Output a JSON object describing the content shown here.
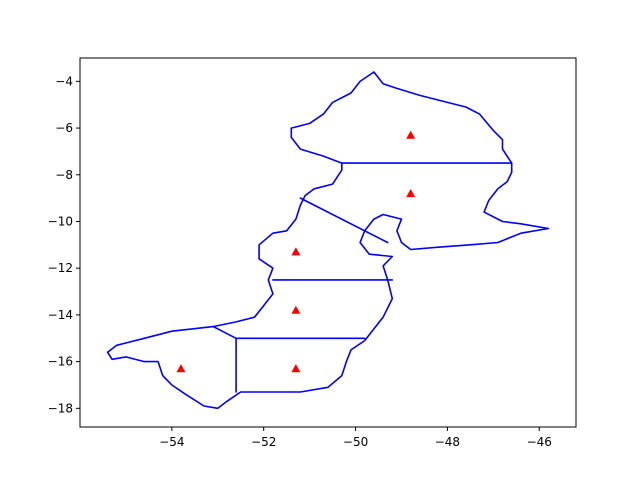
{
  "chart_data": {
    "type": "map",
    "title": "",
    "xlabel": "",
    "ylabel": "",
    "xlim": [
      -56.0,
      -45.2
    ],
    "ylim": [
      -18.8,
      -3.0
    ],
    "xticks": [
      -54,
      -52,
      -50,
      -48,
      -46
    ],
    "yticks": [
      -18,
      -16,
      -14,
      -12,
      -10,
      -8,
      -6,
      -4
    ],
    "grid": false,
    "colors": {
      "boundary": "#0000ff",
      "marker": "#ff0000"
    },
    "outline": [
      [
        -49.6,
        -3.6
      ],
      [
        -49.4,
        -4.1
      ],
      [
        -49.1,
        -4.3
      ],
      [
        -48.6,
        -4.6
      ],
      [
        -48.0,
        -4.9
      ],
      [
        -47.6,
        -5.1
      ],
      [
        -47.3,
        -5.4
      ],
      [
        -47.0,
        -6.1
      ],
      [
        -46.8,
        -6.5
      ],
      [
        -46.8,
        -6.9
      ],
      [
        -46.6,
        -7.5
      ],
      [
        -46.6,
        -7.9
      ],
      [
        -46.7,
        -8.3
      ],
      [
        -46.9,
        -8.6
      ],
      [
        -47.1,
        -9.1
      ],
      [
        -47.2,
        -9.6
      ],
      [
        -46.8,
        -10.0
      ],
      [
        -46.4,
        -10.1
      ],
      [
        -45.8,
        -10.3
      ],
      [
        -46.4,
        -10.5
      ],
      [
        -46.9,
        -10.9
      ],
      [
        -47.5,
        -11.0
      ],
      [
        -48.2,
        -11.1
      ],
      [
        -48.8,
        -11.2
      ],
      [
        -49.0,
        -10.9
      ],
      [
        -49.1,
        -10.4
      ],
      [
        -49.0,
        -9.9
      ],
      [
        -49.4,
        -9.7
      ],
      [
        -49.6,
        -9.9
      ],
      [
        -49.8,
        -10.4
      ],
      [
        -49.9,
        -10.9
      ],
      [
        -49.7,
        -11.4
      ],
      [
        -49.2,
        -11.5
      ],
      [
        -49.4,
        -11.9
      ],
      [
        -49.3,
        -12.5
      ],
      [
        -49.2,
        -13.3
      ],
      [
        -49.4,
        -14.1
      ],
      [
        -49.6,
        -14.6
      ],
      [
        -49.8,
        -15.1
      ],
      [
        -50.1,
        -15.5
      ],
      [
        -50.2,
        -16.0
      ],
      [
        -50.3,
        -16.6
      ],
      [
        -50.6,
        -17.1
      ],
      [
        -51.2,
        -17.3
      ],
      [
        -51.9,
        -17.3
      ],
      [
        -52.5,
        -17.3
      ],
      [
        -52.8,
        -17.7
      ],
      [
        -53.0,
        -18.0
      ],
      [
        -53.3,
        -17.9
      ],
      [
        -53.7,
        -17.4
      ],
      [
        -54.0,
        -17.0
      ],
      [
        -54.2,
        -16.6
      ],
      [
        -54.3,
        -16.0
      ],
      [
        -54.6,
        -16.0
      ],
      [
        -55.0,
        -15.8
      ],
      [
        -55.3,
        -15.9
      ],
      [
        -55.4,
        -15.6
      ],
      [
        -55.2,
        -15.3
      ],
      [
        -54.6,
        -15.0
      ],
      [
        -54.0,
        -14.7
      ],
      [
        -53.1,
        -14.5
      ],
      [
        -52.6,
        -14.3
      ],
      [
        -52.2,
        -14.1
      ],
      [
        -52.0,
        -13.6
      ],
      [
        -51.8,
        -13.1
      ],
      [
        -51.9,
        -12.5
      ],
      [
        -51.8,
        -12.0
      ],
      [
        -52.1,
        -11.6
      ],
      [
        -52.1,
        -11.0
      ],
      [
        -51.8,
        -10.5
      ],
      [
        -51.5,
        -10.4
      ],
      [
        -51.3,
        -9.9
      ],
      [
        -51.2,
        -9.3
      ],
      [
        -51.1,
        -8.9
      ],
      [
        -50.9,
        -8.6
      ],
      [
        -50.5,
        -8.4
      ],
      [
        -50.3,
        -7.8
      ],
      [
        -50.3,
        -7.5
      ],
      [
        -50.7,
        -7.2
      ],
      [
        -51.2,
        -6.9
      ],
      [
        -51.4,
        -6.4
      ],
      [
        -51.4,
        -6.0
      ],
      [
        -51.0,
        -5.8
      ],
      [
        -50.7,
        -5.4
      ],
      [
        -50.5,
        -4.9
      ],
      [
        -50.1,
        -4.5
      ],
      [
        -49.9,
        -4.0
      ],
      [
        -49.6,
        -3.6
      ]
    ],
    "boundaries": [
      [
        [
          -50.3,
          -7.5
        ],
        [
          -46.6,
          -7.5
        ]
      ],
      [
        [
          -51.2,
          -9.0
        ],
        [
          -49.3,
          -10.9
        ]
      ],
      [
        [
          -51.8,
          -12.5
        ],
        [
          -49.2,
          -12.5
        ]
      ],
      [
        [
          -53.1,
          -14.5
        ],
        [
          -52.6,
          -15.0
        ],
        [
          -49.8,
          -15.0
        ]
      ],
      [
        [
          -52.6,
          -15.0
        ],
        [
          -52.6,
          -17.3
        ]
      ]
    ],
    "markers": [
      {
        "x": -48.8,
        "y": -6.3
      },
      {
        "x": -48.8,
        "y": -8.8
      },
      {
        "x": -51.3,
        "y": -11.3
      },
      {
        "x": -51.3,
        "y": -13.8
      },
      {
        "x": -51.3,
        "y": -16.3
      },
      {
        "x": -53.8,
        "y": -16.3
      }
    ]
  }
}
